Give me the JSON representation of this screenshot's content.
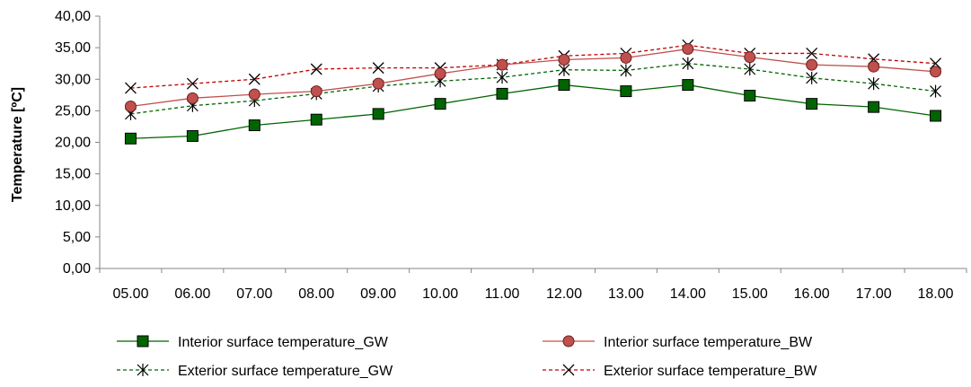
{
  "chart_data": {
    "type": "line",
    "title": "",
    "xlabel": "",
    "ylabel": "Temperature [ºC]",
    "ylim": [
      0,
      40
    ],
    "yticks": [
      "0,00",
      "5,00",
      "10,00",
      "15,00",
      "20,00",
      "25,00",
      "30,00",
      "35,00",
      "40,00"
    ],
    "categories": [
      "05.00",
      "06.00",
      "07.00",
      "08.00",
      "09.00",
      "10.00",
      "11.00",
      "12.00",
      "13.00",
      "14.00",
      "15.00",
      "16.00",
      "17.00",
      "18.00"
    ],
    "grid": false,
    "legend_position": "bottom",
    "series": [
      {
        "name": "Interior surface temperature_GW",
        "color": "#006400",
        "line": "solid",
        "marker": "square",
        "values": [
          20.6,
          21.0,
          22.7,
          23.6,
          24.5,
          26.1,
          27.7,
          29.1,
          28.1,
          29.1,
          27.4,
          26.1,
          25.6,
          24.2
        ]
      },
      {
        "name": "Interior surface temperature_BW",
        "color": "#c0504d",
        "line": "solid",
        "marker": "circle",
        "values": [
          25.7,
          27.0,
          27.6,
          28.1,
          29.3,
          30.9,
          32.3,
          33.1,
          33.4,
          34.8,
          33.5,
          32.3,
          32.0,
          31.2
        ]
      },
      {
        "name": "Exterior surface temperature_GW",
        "color": "#006400",
        "line": "dashed",
        "marker": "asterisk",
        "values": [
          24.5,
          25.8,
          26.6,
          27.7,
          28.9,
          29.7,
          30.3,
          31.5,
          31.4,
          32.5,
          31.6,
          30.2,
          29.3,
          28.1
        ]
      },
      {
        "name": "Exterior surface temperature_BW",
        "color": "#c00000",
        "line": "dashed",
        "marker": "x",
        "values": [
          28.6,
          29.3,
          30.0,
          31.6,
          31.8,
          31.8,
          32.3,
          33.7,
          34.1,
          35.4,
          34.1,
          34.1,
          33.2,
          32.5
        ]
      }
    ]
  }
}
